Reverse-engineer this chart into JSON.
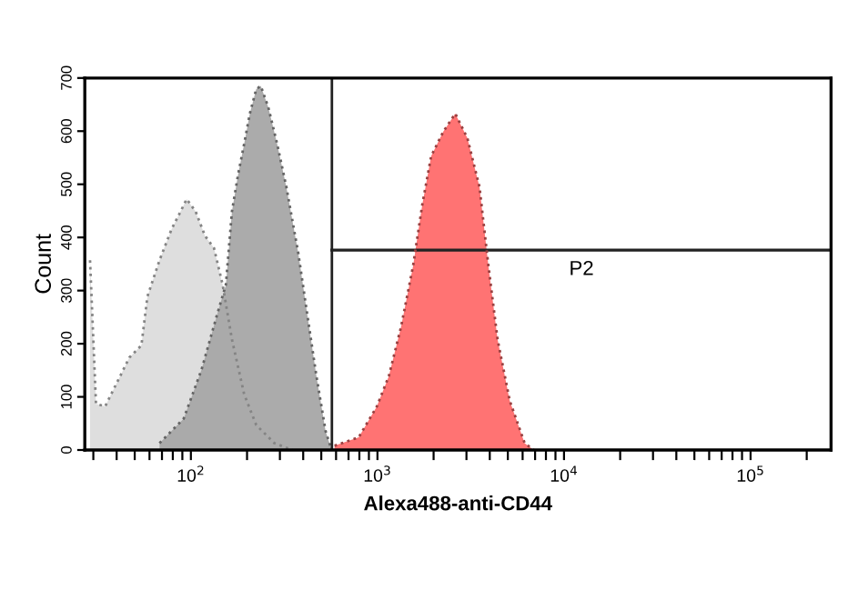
{
  "chart_data": {
    "type": "area",
    "xlabel": "Alexa488-anti-CD44",
    "ylabel": "Count",
    "log": "x",
    "grid": false,
    "xlim": [
      27,
      270000
    ],
    "ylim": [
      0,
      700
    ],
    "xticks": [
      {
        "value": 30,
        "label": null
      },
      {
        "value": 40,
        "label": null
      },
      {
        "value": 50,
        "label": null
      },
      {
        "value": 60,
        "label": null
      },
      {
        "value": 70,
        "label": null
      },
      {
        "value": 80,
        "label": null
      },
      {
        "value": 90,
        "label": null
      },
      {
        "value": 100,
        "label": "10$^{2}$"
      },
      {
        "value": 200,
        "label": null
      },
      {
        "value": 300,
        "label": null
      },
      {
        "value": 400,
        "label": null
      },
      {
        "value": 500,
        "label": null
      },
      {
        "value": 600,
        "label": null
      },
      {
        "value": 700,
        "label": null
      },
      {
        "value": 800,
        "label": null
      },
      {
        "value": 900,
        "label": null
      },
      {
        "value": 1000,
        "label": "10$^{3}$"
      },
      {
        "value": 2000,
        "label": null
      },
      {
        "value": 3000,
        "label": null
      },
      {
        "value": 4000,
        "label": null
      },
      {
        "value": 5000,
        "label": null
      },
      {
        "value": 6000,
        "label": null
      },
      {
        "value": 7000,
        "label": null
      },
      {
        "value": 8000,
        "label": null
      },
      {
        "value": 9000,
        "label": null
      },
      {
        "value": 10000,
        "label": "10$^{4}$"
      },
      {
        "value": 20000,
        "label": null
      },
      {
        "value": 30000,
        "label": null
      },
      {
        "value": 40000,
        "label": null
      },
      {
        "value": 50000,
        "label": null
      },
      {
        "value": 60000,
        "label": null
      },
      {
        "value": 70000,
        "label": null
      },
      {
        "value": 80000,
        "label": null
      },
      {
        "value": 90000,
        "label": null
      },
      {
        "value": 100000,
        "label": "10$^{5}$"
      },
      {
        "value": 200000,
        "label": null
      }
    ],
    "yticks": [
      0,
      100,
      200,
      300,
      400,
      500,
      600,
      700
    ],
    "line_style": "dotted",
    "ref_lines": [
      {
        "axis": "x",
        "value": 570,
        "color": "#222222"
      }
    ],
    "series": [
      {
        "color": "#dcdcdc",
        "x": [
          28.8,
          31.0,
          34.7,
          40.3,
          46.8,
          54.3,
          58.5,
          67.9,
          78.7,
          88.1,
          94.9,
          106,
          119,
          133,
          148,
          166,
          193,
          224,
          280,
          350
        ],
        "values": [
          357,
          87,
          82,
          128,
          174,
          197,
          289,
          357,
          415,
          449,
          472,
          449,
          403,
          380,
          311,
          208,
          105,
          47,
          13,
          0
        ]
      },
      {
        "color": "#a6a6a6",
        "x": [
          67.9,
          91.5,
          114,
          138,
          154,
          166,
          179,
          193,
          207,
          224,
          237,
          260,
          290,
          325,
          377,
          421,
          471,
          527,
          568
        ],
        "values": [
          13,
          59,
          151,
          254,
          311,
          449,
          518,
          576,
          633,
          679,
          685,
          645,
          576,
          495,
          369,
          254,
          139,
          36,
          0
        ]
      },
      {
        "type": "line",
        "name": "P2",
        "color": "#222222",
        "line_style": "solid",
        "x": [
          570,
          270000
        ],
        "values": [
          376,
          376
        ]
      },
      {
        "color": "#ff6b6b",
        "x": [
          589,
          794,
          993,
          1151,
          1337,
          1552,
          1738,
          1941,
          2254,
          2613,
          3034,
          3524,
          3936,
          4406,
          5117,
          6152,
          6887
        ],
        "values": [
          8,
          24,
          82,
          139,
          231,
          346,
          461,
          553,
          599,
          633,
          587,
          495,
          346,
          208,
          93,
          13,
          0
        ]
      }
    ]
  }
}
